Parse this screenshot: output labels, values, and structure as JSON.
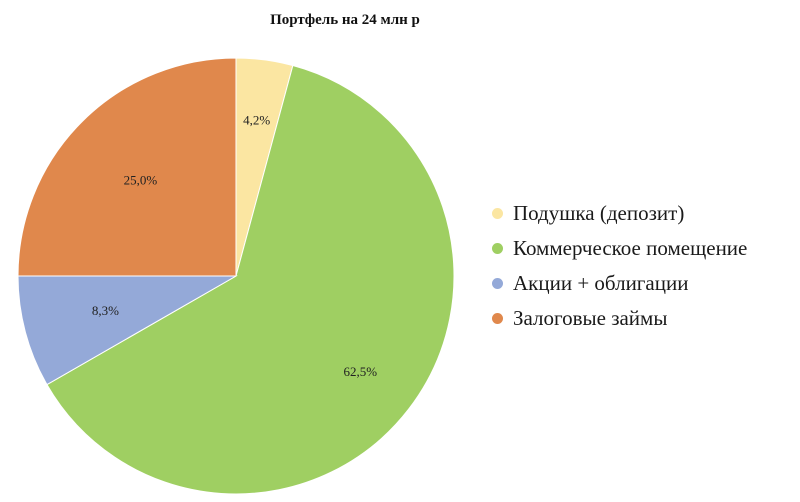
{
  "chart_data": {
    "type": "pie",
    "title": "Портфель на 24 млн р",
    "slices": [
      {
        "label": "Подушка (депозит)",
        "value": 4.2,
        "value_label": "4,2%",
        "color": "#fbe6a2"
      },
      {
        "label": "Коммерческое помещение",
        "value": 62.5,
        "value_label": "62,5%",
        "color": "#9fcf62"
      },
      {
        "label": "Акции + облигации",
        "value": 8.3,
        "value_label": "8,3%",
        "color": "#94a9d8"
      },
      {
        "label": "Залоговые займы",
        "value": 25.0,
        "value_label": "25,0%",
        "color": "#e0884c"
      }
    ],
    "start": "top",
    "direction": "clockwise",
    "legend_position": "right"
  }
}
